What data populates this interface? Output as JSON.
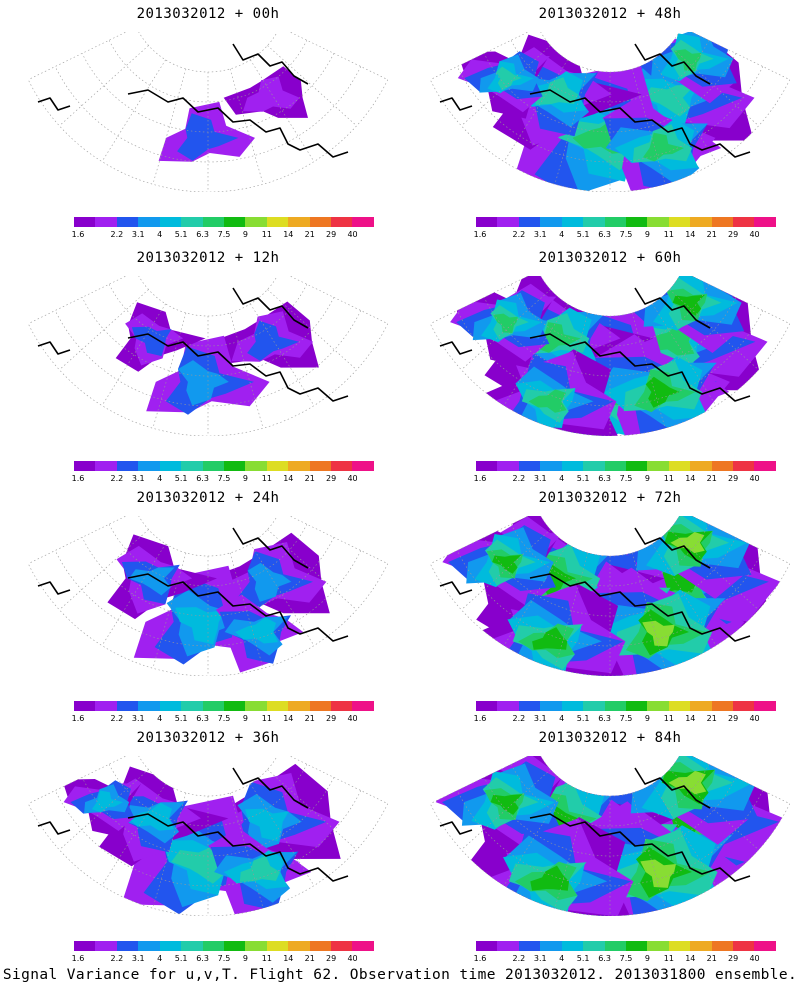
{
  "caption": "Signal Variance for u,v,T. Flight 62. Observation time 2013032012. 2013031800 ensemble.",
  "colorbar": {
    "labels": [
      "1.6",
      "2.2",
      "3.1",
      "4",
      "5.1",
      "6.3",
      "7.5",
      "9",
      "11",
      "14",
      "21",
      "29",
      "40"
    ],
    "colors": [
      "#8800cc",
      "#a020f0",
      "#2255ee",
      "#1199ee",
      "#00bbdd",
      "#22ccaa",
      "#22cc66",
      "#11bb11",
      "#88dd33",
      "#dddd22",
      "#eeaa22",
      "#ee7722",
      "#ee3344",
      "#ee1188"
    ]
  },
  "panels": [
    {
      "title": "2013032012 + 00h",
      "level": 0
    },
    {
      "title": "2013032012 + 48h",
      "level": 4
    },
    {
      "title": "2013032012 + 12h",
      "level": 1
    },
    {
      "title": "2013032012 + 60h",
      "level": 5
    },
    {
      "title": "2013032012 + 24h",
      "level": 2
    },
    {
      "title": "2013032012 + 72h",
      "level": 6
    },
    {
      "title": "2013032012 + 36h",
      "level": 3
    },
    {
      "title": "2013032012 + 84h",
      "level": 7
    }
  ]
}
